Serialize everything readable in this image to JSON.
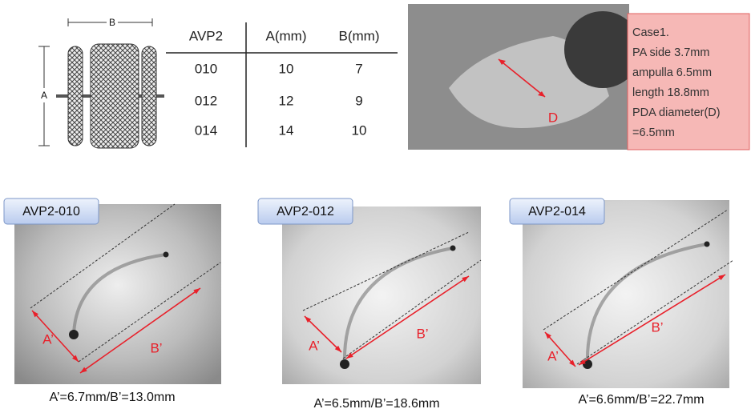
{
  "device": {
    "label_a": "A",
    "label_b": "B"
  },
  "table": {
    "header": [
      "AVP2",
      "A(mm)",
      "B(mm)"
    ],
    "rows": [
      [
        "010",
        "10",
        "7"
      ],
      [
        "012",
        "12",
        "9"
      ],
      [
        "014",
        "14",
        "10"
      ]
    ]
  },
  "case_image": {
    "marker": "D",
    "note": [
      "Case1.",
      "PA side 3.7mm",
      "ampulla 6.5mm",
      "length 18.8mm",
      "PDA diameter(D)",
      "=6.5mm"
    ]
  },
  "panels": [
    {
      "title": "AVP2-010",
      "label_a": "A’",
      "label_b": "B’",
      "caption": "A’=6.7mm/B’=13.0mm"
    },
    {
      "title": "AVP2-012",
      "label_a": "A’",
      "label_b": "B’",
      "caption": "A’=6.5mm/B’=18.6mm"
    },
    {
      "title": "AVP2-014",
      "label_a": "A’",
      "label_b": "B’",
      "caption": "A’=6.6mm/B’=22.7mm"
    }
  ]
}
